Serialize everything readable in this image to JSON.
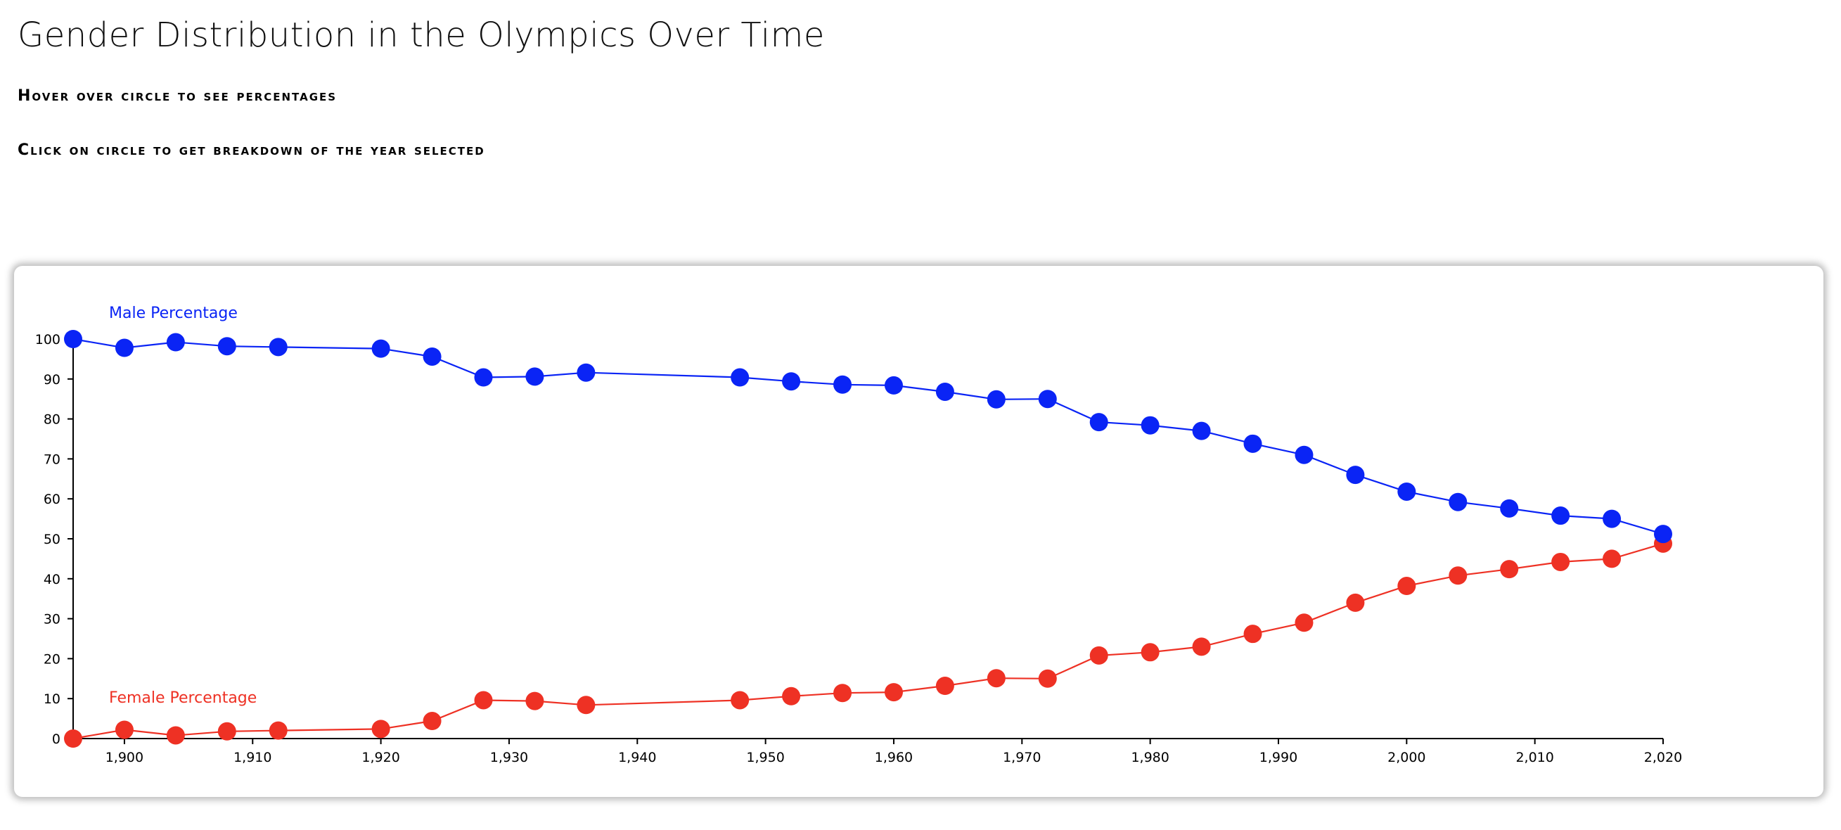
{
  "page": {
    "title": "Gender Distribution in the Olympics Over Time",
    "instruction_hover": "Hover over circle to see percentages",
    "instruction_click": "Click on circle to get breakdown of the year selected"
  },
  "colors": {
    "male": "#0a24f5",
    "female": "#ee3124",
    "axis": "#000000"
  },
  "chart_data": {
    "type": "line",
    "title": "",
    "xlabel": "",
    "ylabel": "",
    "xlim": [
      1896,
      2020
    ],
    "ylim": [
      0,
      100
    ],
    "x_ticks": [
      1900,
      1910,
      1920,
      1930,
      1940,
      1950,
      1960,
      1970,
      1980,
      1990,
      2000,
      2010,
      2020
    ],
    "y_ticks": [
      0,
      10,
      20,
      30,
      40,
      50,
      60,
      70,
      80,
      90,
      100
    ],
    "x": [
      1896,
      1900,
      1904,
      1908,
      1912,
      1920,
      1924,
      1928,
      1932,
      1936,
      1948,
      1952,
      1956,
      1960,
      1964,
      1968,
      1972,
      1976,
      1980,
      1984,
      1988,
      1992,
      1996,
      2000,
      2004,
      2008,
      2012,
      2016,
      2020
    ],
    "series": [
      {
        "name": "Male Percentage",
        "color": "#0a24f5",
        "values": [
          100,
          97.8,
          99.2,
          98.2,
          98.0,
          97.6,
          95.6,
          90.4,
          90.6,
          91.6,
          90.4,
          89.4,
          88.6,
          88.4,
          86.8,
          84.9,
          85.0,
          79.2,
          78.4,
          77.0,
          73.8,
          71.0,
          66.0,
          61.8,
          59.2,
          57.6,
          55.8,
          55.0,
          51.2
        ]
      },
      {
        "name": "Female Percentage",
        "color": "#ee3124",
        "values": [
          0,
          2.2,
          0.8,
          1.8,
          2.0,
          2.4,
          4.4,
          9.6,
          9.4,
          8.4,
          9.6,
          10.6,
          11.4,
          11.6,
          13.2,
          15.1,
          15.0,
          20.8,
          21.6,
          23.0,
          26.2,
          29.0,
          34.0,
          38.2,
          40.8,
          42.4,
          44.2,
          45.0,
          48.8
        ]
      }
    ],
    "legend": "inline-near-lines"
  }
}
